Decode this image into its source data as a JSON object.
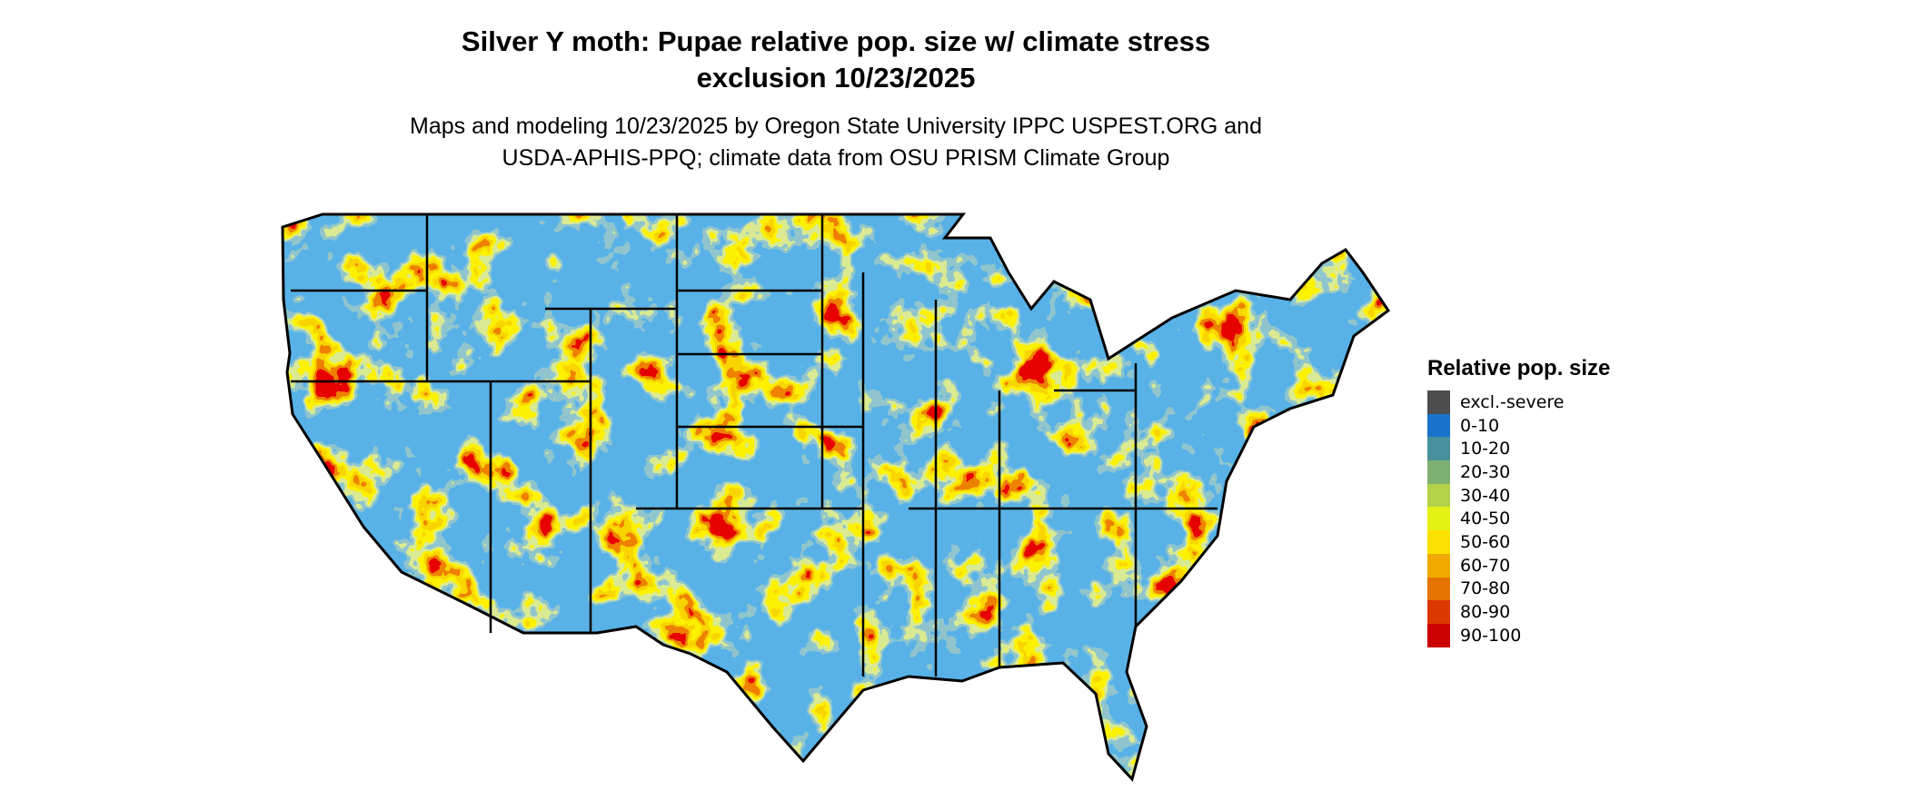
{
  "title_lines": [
    "Silver Y moth: Pupae relative pop. size w/ climate stress",
    "exclusion 10/23/2025"
  ],
  "subtitle_lines": [
    "Maps and modeling 10/23/2025 by Oregon State University IPPC USPEST.ORG and",
    "USDA-APHIS-PPQ; climate data from OSU PRISM Climate Group"
  ],
  "map": {
    "region": "conterminous United States",
    "boundaries": "state borders",
    "dominant_class": "0-10"
  },
  "legend": {
    "title": "Relative pop. size",
    "items": [
      {
        "label": "excl.-severe",
        "color": "#4d4d4d"
      },
      {
        "label": "0-10",
        "color": "#1a73cc"
      },
      {
        "label": "10-20",
        "color": "#47909c"
      },
      {
        "label": "20-30",
        "color": "#7db072"
      },
      {
        "label": "30-40",
        "color": "#b3d249"
      },
      {
        "label": "40-50",
        "color": "#e5f015"
      },
      {
        "label": "50-60",
        "color": "#fae100"
      },
      {
        "label": "60-70",
        "color": "#f0aa00"
      },
      {
        "label": "70-80",
        "color": "#e57300"
      },
      {
        "label": "80-90",
        "color": "#dc3800"
      },
      {
        "label": "90-100",
        "color": "#cc0000"
      }
    ]
  }
}
